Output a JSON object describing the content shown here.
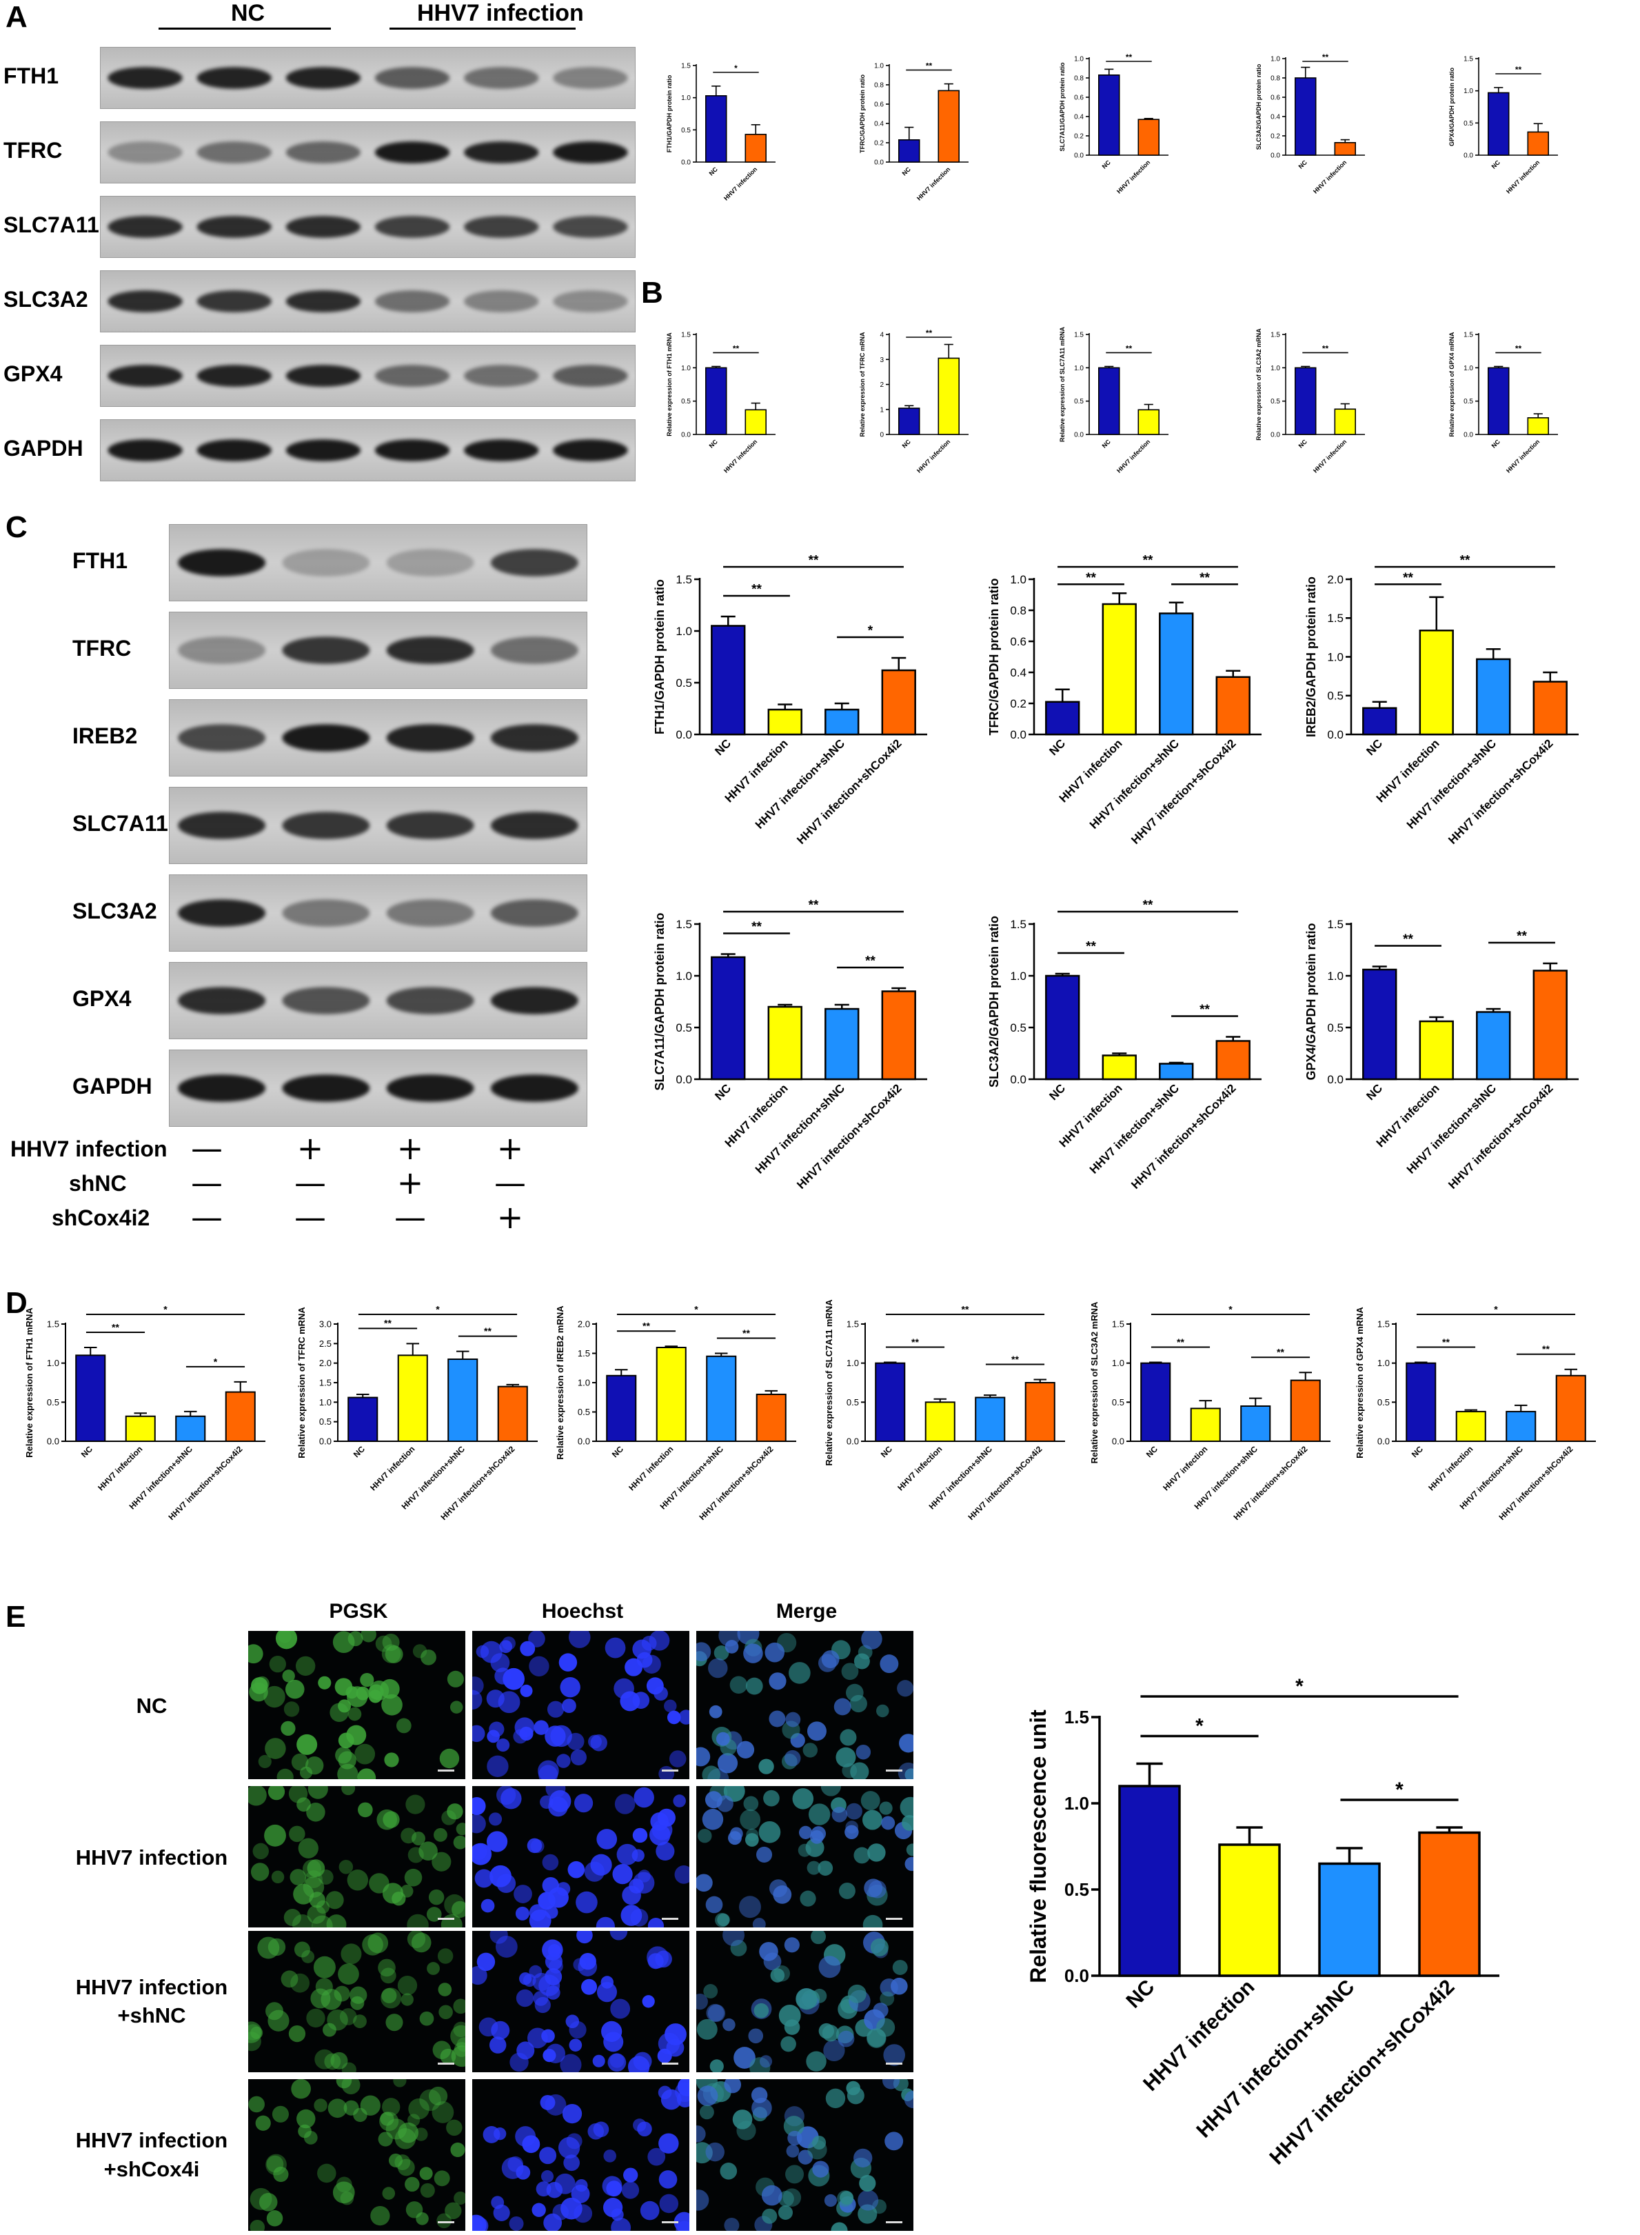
{
  "panels": {
    "A": "A",
    "B": "B",
    "C": "C",
    "D": "D",
    "E": "E"
  },
  "colors": {
    "NC": "#1010b4",
    "HHV7 infection": "#ffff00",
    "HHV7 infection+shNC": "#1e90ff",
    "HHV7 infection+shCox4i2": "#ff6600",
    "HHV7 infection orange": "#ff6600"
  },
  "panelA": {
    "group_nc": "NC",
    "group_hhv7": "HHV7 infection",
    "blot_labels": [
      "FTH1",
      "TFRC",
      "SLC7A11",
      "SLC3A2",
      "GPX4",
      "GAPDH"
    ]
  },
  "panelC": {
    "blot_labels": [
      "FTH1",
      "TFRC",
      "IREB2",
      "SLC7A11",
      "SLC3A2",
      "GPX4",
      "GAPDH"
    ],
    "treatments": [
      {
        "label": "HHV7 infection",
        "signs": [
          "—",
          "+",
          "+",
          "+"
        ]
      },
      {
        "label": "shNC",
        "signs": [
          "—",
          "—",
          "+",
          "—"
        ]
      },
      {
        "label": "shCox4i2",
        "signs": [
          "—",
          "—",
          "—",
          "+"
        ]
      }
    ]
  },
  "panelE": {
    "columns": [
      "PGSK",
      "Hoechst",
      "Merge"
    ],
    "rows": [
      "NC",
      "HHV7 infection",
      "HHV7 infection\n+shNC",
      "HHV7 infection\n+shCox4i"
    ]
  },
  "chart_data": [
    {
      "panel": "A",
      "type": "bar",
      "ylabel": "FTH1/GAPDH protein ratio",
      "categories": [
        "NC",
        "HHV7 infection"
      ],
      "values": [
        1.03,
        0.43
      ],
      "errors": [
        0.15,
        0.15
      ],
      "colors": [
        "#1010b4",
        "#ff6600"
      ],
      "ylim": [
        0,
        1.5
      ],
      "ticks": [
        "0.0",
        "0.5",
        "1.0",
        "1.5"
      ],
      "sig": [
        {
          "a": 0,
          "b": 1,
          "t": "*"
        }
      ]
    },
    {
      "panel": "A",
      "type": "bar",
      "ylabel": "TFRC/GAPDH protein ratio",
      "categories": [
        "NC",
        "HHV7 infection"
      ],
      "values": [
        0.23,
        0.74
      ],
      "errors": [
        0.13,
        0.07
      ],
      "colors": [
        "#1010b4",
        "#ff6600"
      ],
      "ylim": [
        0,
        1.0
      ],
      "ticks": [
        "0.0",
        "0.2",
        "0.4",
        "0.6",
        "0.8",
        "1.0"
      ],
      "sig": [
        {
          "a": 0,
          "b": 1,
          "t": "**"
        }
      ]
    },
    {
      "panel": "A",
      "type": "bar",
      "ylabel": "SLC7A11/GAPDH protein ratio",
      "categories": [
        "NC",
        "HHV7 infection"
      ],
      "values": [
        0.83,
        0.37
      ],
      "errors": [
        0.06,
        0.01
      ],
      "colors": [
        "#1010b4",
        "#ff6600"
      ],
      "ylim": [
        0,
        1.0
      ],
      "ticks": [
        "0.0",
        "0.2",
        "0.4",
        "0.6",
        "0.8",
        "1.0"
      ],
      "sig": [
        {
          "a": 0,
          "b": 1,
          "t": "**"
        }
      ]
    },
    {
      "panel": "A",
      "type": "bar",
      "ylabel": "SLC3A2/GAPDH protein ratio",
      "categories": [
        "NC",
        "HHV7 infection"
      ],
      "values": [
        0.8,
        0.13
      ],
      "errors": [
        0.11,
        0.03
      ],
      "colors": [
        "#1010b4",
        "#ff6600"
      ],
      "ylim": [
        0,
        1.0
      ],
      "ticks": [
        "0.0",
        "0.2",
        "0.4",
        "0.6",
        "0.8",
        "1.0"
      ],
      "sig": [
        {
          "a": 0,
          "b": 1,
          "t": "**"
        }
      ]
    },
    {
      "panel": "A",
      "type": "bar",
      "ylabel": "GPX4/GAPDH protein ratio",
      "categories": [
        "NC",
        "HHV7 infection"
      ],
      "values": [
        0.97,
        0.36
      ],
      "errors": [
        0.08,
        0.13
      ],
      "colors": [
        "#1010b4",
        "#ff6600"
      ],
      "ylim": [
        0,
        1.5
      ],
      "ticks": [
        "0.0",
        "0.5",
        "1.0",
        "1.5"
      ],
      "sig": [
        {
          "a": 0,
          "b": 1,
          "t": "**"
        }
      ]
    },
    {
      "panel": "B",
      "type": "bar",
      "ylabel": "Relative expression of FTH1 mRNA",
      "categories": [
        "NC",
        "HHV7 infection"
      ],
      "values": [
        1.0,
        0.37
      ],
      "errors": [
        0.02,
        0.1
      ],
      "colors": [
        "#1010b4",
        "#ffff00"
      ],
      "ylim": [
        0,
        1.5
      ],
      "ticks": [
        "0.0",
        "0.5",
        "1.0",
        "1.5"
      ],
      "sig": [
        {
          "a": 0,
          "b": 1,
          "t": "**"
        }
      ]
    },
    {
      "panel": "B",
      "type": "bar",
      "ylabel": "Relative expression of TFRC mRNA",
      "categories": [
        "NC",
        "HHV7 infection"
      ],
      "values": [
        1.05,
        3.05
      ],
      "errors": [
        0.1,
        0.55
      ],
      "colors": [
        "#1010b4",
        "#ffff00"
      ],
      "ylim": [
        0,
        4
      ],
      "ticks": [
        "0",
        "1",
        "2",
        "3",
        "4"
      ],
      "sig": [
        {
          "a": 0,
          "b": 1,
          "t": "**"
        }
      ]
    },
    {
      "panel": "B",
      "type": "bar",
      "ylabel": "Relative expression of SLC7A11 mRNA",
      "categories": [
        "NC",
        "HHV7 infection"
      ],
      "values": [
        1.0,
        0.37
      ],
      "errors": [
        0.02,
        0.08
      ],
      "colors": [
        "#1010b4",
        "#ffff00"
      ],
      "ylim": [
        0,
        1.5
      ],
      "ticks": [
        "0.0",
        "0.5",
        "1.0",
        "1.5"
      ],
      "sig": [
        {
          "a": 0,
          "b": 1,
          "t": "**"
        }
      ]
    },
    {
      "panel": "B",
      "type": "bar",
      "ylabel": "Relative expression of SLC3A2 mRNA",
      "categories": [
        "NC",
        "HHV7 infection"
      ],
      "values": [
        1.0,
        0.38
      ],
      "errors": [
        0.02,
        0.08
      ],
      "colors": [
        "#1010b4",
        "#ffff00"
      ],
      "ylim": [
        0,
        1.5
      ],
      "ticks": [
        "0.0",
        "0.5",
        "1.0",
        "1.5"
      ],
      "sig": [
        {
          "a": 0,
          "b": 1,
          "t": "**"
        }
      ]
    },
    {
      "panel": "B",
      "type": "bar",
      "ylabel": "Relative expression of GPX4 mRNA",
      "categories": [
        "NC",
        "HHV7 infection"
      ],
      "values": [
        1.0,
        0.25
      ],
      "errors": [
        0.02,
        0.06
      ],
      "colors": [
        "#1010b4",
        "#ffff00"
      ],
      "ylim": [
        0,
        1.5
      ],
      "ticks": [
        "0.0",
        "0.5",
        "1.0",
        "1.5"
      ],
      "sig": [
        {
          "a": 0,
          "b": 1,
          "t": "**"
        }
      ]
    },
    {
      "panel": "C",
      "type": "bar",
      "ylabel": "FTH1/GAPDH protein ratio",
      "categories": [
        "NC",
        "HHV7 infection",
        "HHV7 infection+shNC",
        "HHV7 infection+shCox4i2"
      ],
      "values": [
        1.05,
        0.24,
        0.24,
        0.62
      ],
      "errors": [
        0.09,
        0.05,
        0.06,
        0.12
      ],
      "colors": [
        "#1010b4",
        "#ffff00",
        "#1e90ff",
        "#ff6600"
      ],
      "ylim": [
        0,
        1.5
      ],
      "ticks": [
        "0.0",
        "0.5",
        "1.0",
        "1.5"
      ],
      "sig": [
        {
          "a": 0,
          "b": 1,
          "t": "**"
        },
        {
          "a": 2,
          "b": 3,
          "t": "*"
        },
        {
          "a": 0,
          "b": 3,
          "t": "**"
        }
      ]
    },
    {
      "panel": "C",
      "type": "bar",
      "ylabel": "TFRC/GAPDH protein ratio",
      "categories": [
        "NC",
        "HHV7 infection",
        "HHV7 infection+shNC",
        "HHV7 infection+shCox4i2"
      ],
      "values": [
        0.21,
        0.84,
        0.78,
        0.37
      ],
      "errors": [
        0.08,
        0.07,
        0.07,
        0.04
      ],
      "colors": [
        "#1010b4",
        "#ffff00",
        "#1e90ff",
        "#ff6600"
      ],
      "ylim": [
        0,
        1.0
      ],
      "ticks": [
        "0.0",
        "0.2",
        "0.4",
        "0.6",
        "0.8",
        "1.0"
      ],
      "sig": [
        {
          "a": 0,
          "b": 1,
          "t": "**"
        },
        {
          "a": 2,
          "b": 3,
          "t": "**"
        },
        {
          "a": 0,
          "b": 3,
          "t": "**"
        }
      ]
    },
    {
      "panel": "C",
      "type": "bar",
      "ylabel": "IREB2/GAPDH protein ratio",
      "categories": [
        "NC",
        "HHV7 infection",
        "HHV7 infection+shNC",
        "HHV7 infection+shCox4i2"
      ],
      "values": [
        0.34,
        1.34,
        0.97,
        0.68
      ],
      "errors": [
        0.08,
        0.43,
        0.13,
        0.12
      ],
      "colors": [
        "#1010b4",
        "#ffff00",
        "#1e90ff",
        "#ff6600"
      ],
      "ylim": [
        0,
        2.0
      ],
      "ticks": [
        "0.0",
        "0.5",
        "1.0",
        "1.5",
        "2.0"
      ],
      "sig": [
        {
          "a": 0,
          "b": 1,
          "t": "**"
        },
        {
          "a": 0,
          "b": 3,
          "t": "**"
        }
      ]
    },
    {
      "panel": "C",
      "type": "bar",
      "ylabel": "SLC7A11/GAPDH protein ratio",
      "categories": [
        "NC",
        "HHV7 infection",
        "HHV7 infection+shNC",
        "HHV7 infection+shCox4i2"
      ],
      "values": [
        1.18,
        0.7,
        0.68,
        0.85
      ],
      "errors": [
        0.03,
        0.02,
        0.04,
        0.03
      ],
      "colors": [
        "#1010b4",
        "#ffff00",
        "#1e90ff",
        "#ff6600"
      ],
      "ylim": [
        0,
        1.5
      ],
      "ticks": [
        "0.0",
        "0.5",
        "1.0",
        "1.5"
      ],
      "sig": [
        {
          "a": 0,
          "b": 1,
          "t": "**"
        },
        {
          "a": 2,
          "b": 3,
          "t": "**"
        },
        {
          "a": 0,
          "b": 3,
          "t": "**"
        }
      ]
    },
    {
      "panel": "C",
      "type": "bar",
      "ylabel": "SLC3A2/GAPDH protein ratio",
      "categories": [
        "NC",
        "HHV7 infection",
        "HHV7 infection+shNC",
        "HHV7 infection+shCox4i2"
      ],
      "values": [
        1.0,
        0.23,
        0.15,
        0.37
      ],
      "errors": [
        0.02,
        0.02,
        0.01,
        0.04
      ],
      "colors": [
        "#1010b4",
        "#ffff00",
        "#1e90ff",
        "#ff6600"
      ],
      "ylim": [
        0,
        1.5
      ],
      "ticks": [
        "0.0",
        "0.5",
        "1.0",
        "1.5"
      ],
      "sig": [
        {
          "a": 0,
          "b": 1,
          "t": "**"
        },
        {
          "a": 2,
          "b": 3,
          "t": "**"
        },
        {
          "a": 0,
          "b": 3,
          "t": "**"
        }
      ]
    },
    {
      "panel": "C",
      "type": "bar",
      "ylabel": "GPX4/GAPDH protein ratio",
      "categories": [
        "NC",
        "HHV7 infection",
        "HHV7 infection+shNC",
        "HHV7 infection+shCox4i2"
      ],
      "values": [
        1.06,
        0.56,
        0.65,
        1.05
      ],
      "errors": [
        0.03,
        0.04,
        0.03,
        0.07
      ],
      "colors": [
        "#1010b4",
        "#ffff00",
        "#1e90ff",
        "#ff6600"
      ],
      "ylim": [
        0,
        1.5
      ],
      "ticks": [
        "0.0",
        "0.5",
        "1.0",
        "1.5"
      ],
      "sig": [
        {
          "a": 0,
          "b": 1,
          "t": "**"
        },
        {
          "a": 2,
          "b": 3,
          "t": "**"
        }
      ]
    },
    {
      "panel": "D",
      "type": "bar",
      "ylabel": "Relative expression of FTH1 mRNA",
      "categories": [
        "NC",
        "HHV7 infection",
        "HHV7 infection+shNC",
        "HHV7 infection+shCox4i2"
      ],
      "values": [
        1.1,
        0.32,
        0.32,
        0.63
      ],
      "errors": [
        0.1,
        0.04,
        0.06,
        0.13
      ],
      "colors": [
        "#1010b4",
        "#ffff00",
        "#1e90ff",
        "#ff6600"
      ],
      "ylim": [
        0,
        1.5
      ],
      "ticks": [
        "0.0",
        "0.5",
        "1.0",
        "1.5"
      ],
      "sig": [
        {
          "a": 0,
          "b": 1,
          "t": "**"
        },
        {
          "a": 2,
          "b": 3,
          "t": "*"
        },
        {
          "a": 0,
          "b": 3,
          "t": "*"
        }
      ]
    },
    {
      "panel": "D",
      "type": "bar",
      "ylabel": "Relative expression of TFRC mRNA",
      "categories": [
        "NC",
        "HHV7 infection",
        "HHV7 infection+shNC",
        "HHV7 infection+shCox4i2"
      ],
      "values": [
        1.12,
        2.2,
        2.1,
        1.4
      ],
      "errors": [
        0.08,
        0.3,
        0.2,
        0.05
      ],
      "colors": [
        "#1010b4",
        "#ffff00",
        "#1e90ff",
        "#ff6600"
      ],
      "ylim": [
        0,
        3.0
      ],
      "ticks": [
        "0.0",
        "0.5",
        "1.0",
        "1.5",
        "2.0",
        "2.5",
        "3.0"
      ],
      "sig": [
        {
          "a": 0,
          "b": 1,
          "t": "**"
        },
        {
          "a": 2,
          "b": 3,
          "t": "**"
        },
        {
          "a": 0,
          "b": 3,
          "t": "*"
        }
      ]
    },
    {
      "panel": "D",
      "type": "bar",
      "ylabel": "Relative expression of IREB2 mRNA",
      "categories": [
        "NC",
        "HHV7 infection",
        "HHV7 infection+shNC",
        "HHV7 infection+shCox4i2"
      ],
      "values": [
        1.12,
        1.6,
        1.45,
        0.8
      ],
      "errors": [
        0.1,
        0.02,
        0.05,
        0.06
      ],
      "colors": [
        "#1010b4",
        "#ffff00",
        "#1e90ff",
        "#ff6600"
      ],
      "ylim": [
        0,
        2.0
      ],
      "ticks": [
        "0.0",
        "0.5",
        "1.0",
        "1.5",
        "2.0"
      ],
      "sig": [
        {
          "a": 0,
          "b": 1,
          "t": "**"
        },
        {
          "a": 2,
          "b": 3,
          "t": "**"
        },
        {
          "a": 0,
          "b": 3,
          "t": "*"
        }
      ]
    },
    {
      "panel": "D",
      "type": "bar",
      "ylabel": "Relative expression of SLC7A11 mRNA",
      "categories": [
        "NC",
        "HHV7 infection",
        "HHV7 infection+shNC",
        "HHV7 infection+shCox4i2"
      ],
      "values": [
        1.0,
        0.5,
        0.56,
        0.75
      ],
      "errors": [
        0.01,
        0.04,
        0.03,
        0.04
      ],
      "colors": [
        "#1010b4",
        "#ffff00",
        "#1e90ff",
        "#ff6600"
      ],
      "ylim": [
        0,
        1.5
      ],
      "ticks": [
        "0.0",
        "0.5",
        "1.0",
        "1.5"
      ],
      "sig": [
        {
          "a": 0,
          "b": 1,
          "t": "**"
        },
        {
          "a": 2,
          "b": 3,
          "t": "**"
        },
        {
          "a": 0,
          "b": 3,
          "t": "**"
        }
      ]
    },
    {
      "panel": "D",
      "type": "bar",
      "ylabel": "Relative expression of SLC3A2 mRNA",
      "categories": [
        "NC",
        "HHV7 infection",
        "HHV7 infection+shNC",
        "HHV7 infection+shCox4i2"
      ],
      "values": [
        1.0,
        0.42,
        0.45,
        0.78
      ],
      "errors": [
        0.01,
        0.1,
        0.1,
        0.1
      ],
      "colors": [
        "#1010b4",
        "#ffff00",
        "#1e90ff",
        "#ff6600"
      ],
      "ylim": [
        0,
        1.5
      ],
      "ticks": [
        "0.0",
        "0.5",
        "1.0",
        "1.5"
      ],
      "sig": [
        {
          "a": 0,
          "b": 1,
          "t": "**"
        },
        {
          "a": 2,
          "b": 3,
          "t": "**"
        },
        {
          "a": 0,
          "b": 3,
          "t": "*"
        }
      ]
    },
    {
      "panel": "D",
      "type": "bar",
      "ylabel": "Relative expression of GPX4 mRNA",
      "categories": [
        "NC",
        "HHV7 infection",
        "HHV7 infection+shNC",
        "HHV7 infection+shCox4i2"
      ],
      "values": [
        1.0,
        0.38,
        0.38,
        0.84
      ],
      "errors": [
        0.01,
        0.02,
        0.08,
        0.08
      ],
      "colors": [
        "#1010b4",
        "#ffff00",
        "#1e90ff",
        "#ff6600"
      ],
      "ylim": [
        0,
        1.5
      ],
      "ticks": [
        "0.0",
        "0.5",
        "1.0",
        "1.5"
      ],
      "sig": [
        {
          "a": 0,
          "b": 1,
          "t": "**"
        },
        {
          "a": 2,
          "b": 3,
          "t": "**"
        },
        {
          "a": 0,
          "b": 3,
          "t": "*"
        }
      ]
    },
    {
      "panel": "E",
      "type": "bar",
      "ylabel": "Relative fluorescence unit",
      "categories": [
        "NC",
        "HHV7 infection",
        "HHV7 infection+shNC",
        "HHV7 infection+shCox4i2"
      ],
      "values": [
        1.1,
        0.76,
        0.65,
        0.83
      ],
      "errors": [
        0.13,
        0.1,
        0.09,
        0.03
      ],
      "colors": [
        "#1010b4",
        "#ffff00",
        "#1e90ff",
        "#ff6600"
      ],
      "ylim": [
        0,
        1.5
      ],
      "ticks": [
        "0.0",
        "0.5",
        "1.0",
        "1.5"
      ],
      "sig": [
        {
          "a": 0,
          "b": 1,
          "t": "*"
        },
        {
          "a": 2,
          "b": 3,
          "t": "*"
        },
        {
          "a": 0,
          "b": 3,
          "t": "*"
        }
      ]
    }
  ]
}
